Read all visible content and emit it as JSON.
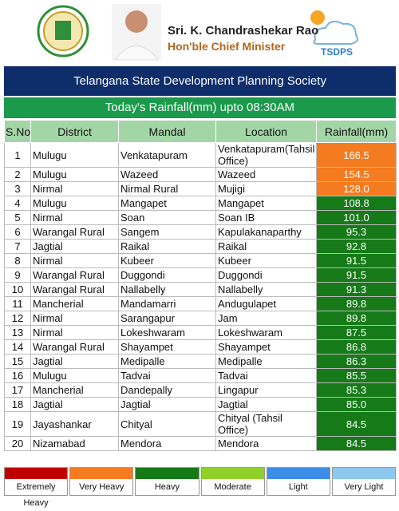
{
  "header": {
    "name": "Sri. K. Chandrashekar Rao",
    "designation": "Hon'ble Chief Minister",
    "brand": "TSDPS",
    "organization": "Telangana State Development Planning Society",
    "subtitle": "Today's Rainfall(mm) upto 08:30AM"
  },
  "table": {
    "columns": [
      "S.No",
      "District",
      "Mandal",
      "Location",
      "Rainfall(mm)"
    ],
    "rows": [
      [
        "1",
        "Mulugu",
        "Venkatapuram",
        "Venkatapuram(Tahsil Office)",
        "166.5"
      ],
      [
        "2",
        "Mulugu",
        "Wazeed",
        "Wazeed",
        "154.5"
      ],
      [
        "3",
        "Nirmal",
        "Nirmal Rural",
        "Mujigi",
        "128.0"
      ],
      [
        "4",
        "Mulugu",
        "Mangapet",
        "Mangapet",
        "108.8"
      ],
      [
        "5",
        "Nirmal",
        "Soan",
        "Soan IB",
        "101.0"
      ],
      [
        "6",
        "Warangal Rural",
        "Sangem",
        "Kapulakanaparthy",
        "95.3"
      ],
      [
        "7",
        "Jagtial",
        "Raikal",
        "Raikal",
        "92.8"
      ],
      [
        "8",
        "Nirmal",
        "Kubeer",
        "Kubeer",
        "91.5"
      ],
      [
        "9",
        "Warangal Rural",
        "Duggondi",
        "Duggondi",
        "91.5"
      ],
      [
        "10",
        "Warangal Rural",
        "Nallabelly",
        "Nallabelly",
        "91.3"
      ],
      [
        "11",
        "Mancherial",
        "Mandamarri",
        "Andugulapet",
        "89.8"
      ],
      [
        "12",
        "Nirmal",
        "Sarangapur",
        "Jam",
        "89.8"
      ],
      [
        "13",
        "Nirmal",
        "Lokeshwaram",
        "Lokeshwaram",
        "87.5"
      ],
      [
        "14",
        "Warangal Rural",
        "Shayampet",
        "Shayampet",
        "86.8"
      ],
      [
        "15",
        "Jagtial",
        "Medipalle",
        "Medipalle",
        "86.3"
      ],
      [
        "16",
        "Mulugu",
        "Tadvai",
        "Tadvai",
        "85.5"
      ],
      [
        "17",
        "Mancherial",
        "Dandepally",
        "Lingapur",
        "85.3"
      ],
      [
        "18",
        "Jagtial",
        "Jagtial",
        "Jagtial",
        "85.0"
      ],
      [
        "19",
        "Jayashankar",
        "Chityal",
        "Chityal (Tahsil Office)",
        "84.5"
      ],
      [
        "20",
        "Nizamabad",
        "Mendora",
        "Mendora",
        "84.5"
      ]
    ],
    "row_colors": [
      "#f47b20",
      "#f47b20",
      "#f47b20",
      "#167a18",
      "#167a18",
      "#167a18",
      "#167a18",
      "#167a18",
      "#167a18",
      "#167a18",
      "#167a18",
      "#167a18",
      "#167a18",
      "#167a18",
      "#167a18",
      "#167a18",
      "#167a18",
      "#167a18",
      "#167a18",
      "#167a18"
    ]
  },
  "legend": [
    {
      "label": "Extremely Heavy",
      "color": "#c00000"
    },
    {
      "label": "Very Heavy",
      "color": "#f47b20"
    },
    {
      "label": "Heavy",
      "color": "#167a18"
    },
    {
      "label": "Moderate",
      "color": "#8fd12a"
    },
    {
      "label": "Light",
      "color": "#3b8de6"
    },
    {
      "label": "Very Light",
      "color": "#8ec8f0"
    }
  ]
}
